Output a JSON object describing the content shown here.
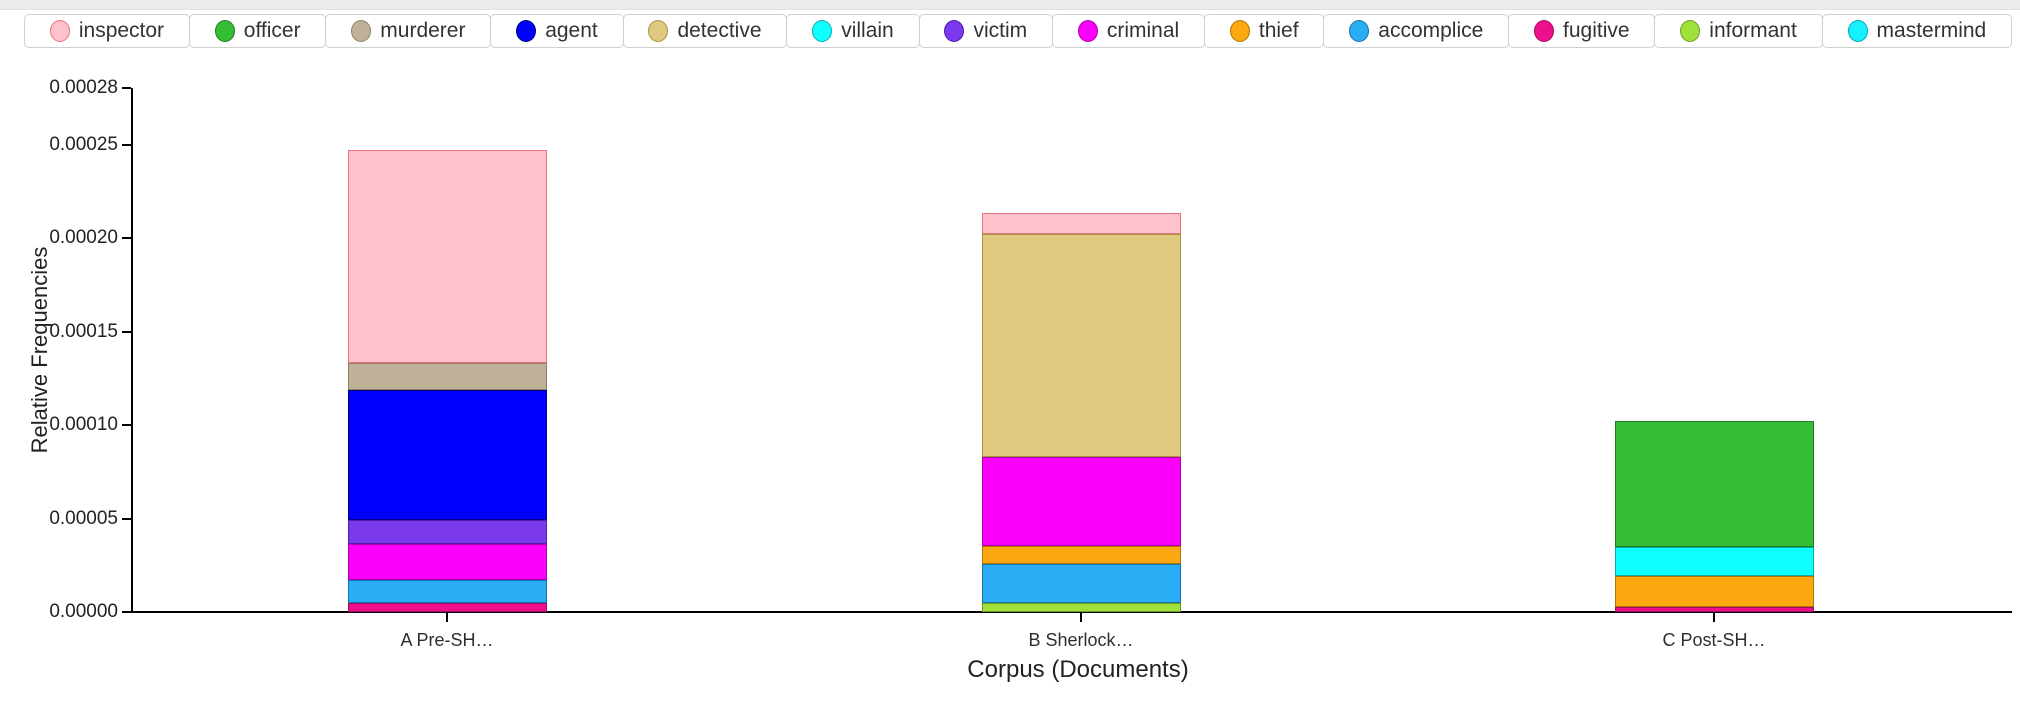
{
  "page": {
    "top_strip_color": "#ebebeb",
    "background_color": "#ffffff"
  },
  "chart_data": {
    "type": "bar",
    "stacked": true,
    "title": "",
    "xlabel": "Corpus (Documents)",
    "ylabel": "Relative Frequencies",
    "categories": [
      "A Pre-SH…",
      "B Sherlock…",
      "C Post-SH…"
    ],
    "ylim": [
      0,
      0.00028
    ],
    "grid": false,
    "legend_position": "top",
    "yticks": [
      {
        "label": "0.00000",
        "value": 0
      },
      {
        "label": "0.00005",
        "value": 5e-05
      },
      {
        "label": "0.00010",
        "value": 0.0001
      },
      {
        "label": "0.00015",
        "value": 0.00015
      },
      {
        "label": "0.00020",
        "value": 0.0002
      },
      {
        "label": "0.00025",
        "value": 0.00025
      },
      {
        "label": "0.00028",
        "value": 0.00028
      }
    ],
    "bar_totals": [
      0.0002471,
      0.0002134,
      0.0001021
    ],
    "series": [
      {
        "name": "inspector",
        "color": "#FFC1CB",
        "stroke": "#E8747E",
        "values": [
          0.0001139,
          1.14e-05,
          0
        ]
      },
      {
        "name": "officer",
        "color": "#35BC35",
        "stroke": "#1E7D1E",
        "values": [
          0,
          0,
          6.73e-05
        ]
      },
      {
        "name": "murderer",
        "color": "#BFB098",
        "stroke": "#8E8066",
        "values": [
          1.45e-05,
          0,
          0
        ]
      },
      {
        "name": "agent",
        "color": "#0000FE",
        "stroke": "#000080",
        "values": [
          6.95e-05,
          0,
          0
        ]
      },
      {
        "name": "detective",
        "color": "#DFC97E",
        "stroke": "#A89140",
        "values": [
          0,
          0.0001191,
          0
        ]
      },
      {
        "name": "villain",
        "color": "#10FFFF",
        "stroke": "#00AEAE",
        "values": [
          0,
          0,
          1.55e-05
        ]
      },
      {
        "name": "victim",
        "color": "#7A39EC",
        "stroke": "#4F1DAB",
        "values": [
          1.28e-05,
          0,
          0
        ]
      },
      {
        "name": "criminal",
        "color": "#FB00FB",
        "stroke": "#AD00AD",
        "values": [
          1.93e-05,
          4.76e-05,
          0
        ]
      },
      {
        "name": "thief",
        "color": "#FCA811",
        "stroke": "#B27300",
        "values": [
          0,
          9.6e-06,
          1.66e-05
        ]
      },
      {
        "name": "accomplice",
        "color": "#29ADF5",
        "stroke": "#1773AC",
        "values": [
          1.23e-05,
          2.09e-05,
          0
        ]
      },
      {
        "name": "fugitive",
        "color": "#EE0F8C",
        "stroke": "#A30A60",
        "values": [
          4.8e-06,
          0,
          2.7e-06
        ]
      },
      {
        "name": "informant",
        "color": "#A0E03A",
        "stroke": "#6C9C20",
        "values": [
          0,
          4.8e-06,
          0
        ]
      },
      {
        "name": "mastermind",
        "color": "#17F0FF",
        "stroke": "#00A8B4",
        "values": [
          0,
          0,
          0
        ]
      }
    ]
  }
}
